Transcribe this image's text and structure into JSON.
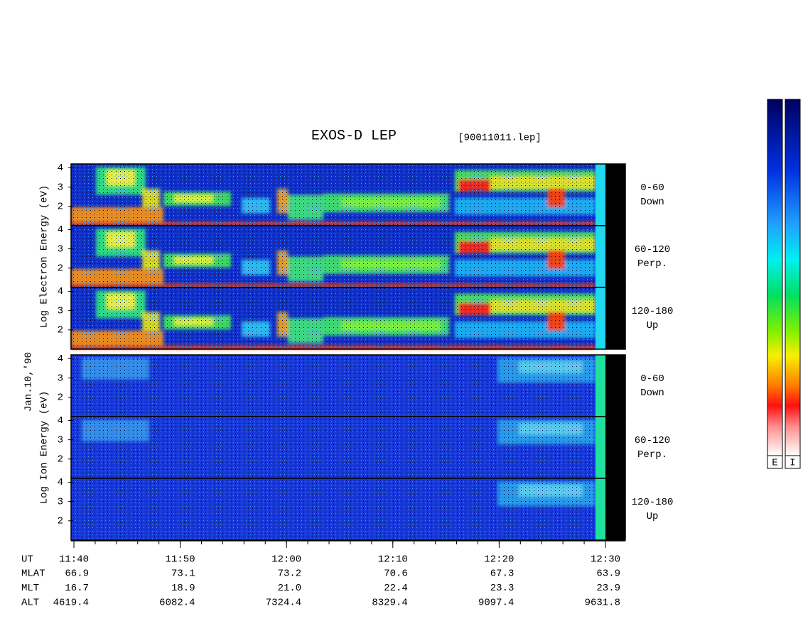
{
  "chart_data": {
    "type": "spectrogram",
    "title": "EXOS-D LEP",
    "file": "[90011011.lep]",
    "date": "Jan.10,'90",
    "groups": [
      {
        "label": "Log Electron Energy (eV)",
        "panels": [
          {
            "angle": "0-60",
            "direction": "Down"
          },
          {
            "angle": "60-120",
            "direction": "Perp."
          },
          {
            "angle": "120-180",
            "direction": "Up"
          }
        ]
      },
      {
        "label": "Log Ion Energy (eV)",
        "panels": [
          {
            "angle": "0-60",
            "direction": "Down"
          },
          {
            "angle": "60-120",
            "direction": "Perp."
          },
          {
            "angle": "120-180",
            "direction": "Up"
          }
        ]
      }
    ],
    "ylim": [
      1,
      4.2
    ],
    "yticks": [
      2,
      3,
      4
    ],
    "x_label": "UT",
    "xticks": [
      "11:40",
      "11:50",
      "12:00",
      "12:10",
      "12:20",
      "12:30"
    ],
    "orbit": [
      {
        "label": "MLAT",
        "values": [
          "66.9",
          "73.1",
          "73.2",
          "70.6",
          "67.3",
          "63.9"
        ]
      },
      {
        "label": "MLT",
        "values": [
          "16.7",
          "18.9",
          "21.0",
          "22.4",
          "23.3",
          "23.9"
        ]
      },
      {
        "label": "ALT",
        "values": [
          "4619.4",
          "6082.4",
          "7324.4",
          "8329.4",
          "9097.4",
          "9631.8"
        ]
      }
    ],
    "colorbars": [
      "E",
      "I"
    ]
  }
}
